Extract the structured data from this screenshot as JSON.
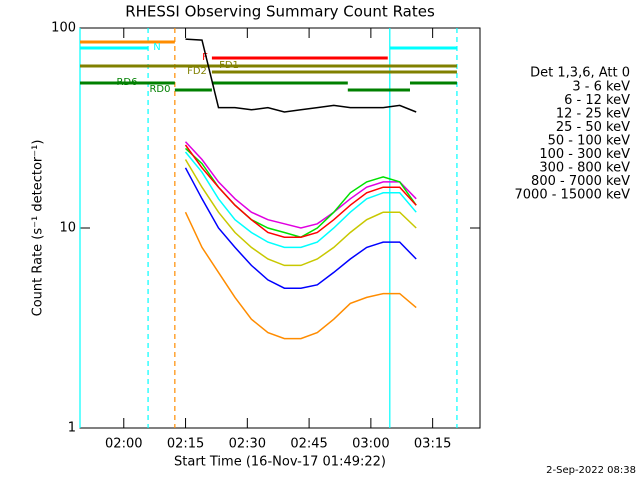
{
  "chart_data": {
    "type": "line",
    "title": "RHESSI Observing Summary Count Rates",
    "x_label": "Start Time (16-Nov-17 01:49:22)",
    "y_label": "Count Rate (s⁻¹ detector⁻¹)",
    "legend_title": "Det 1,3,6, Att 0",
    "footer": "2-Sep-2022 08:38",
    "log_y": true,
    "ylim": [
      1,
      100
    ],
    "yticks": [
      1,
      10,
      100
    ],
    "xlim": [
      109.37,
      206.5
    ],
    "xticks": [
      {
        "value": 120,
        "label": "02:00"
      },
      {
        "value": 135,
        "label": "02:15"
      },
      {
        "value": 150,
        "label": "02:30"
      },
      {
        "value": 165,
        "label": "02:45"
      },
      {
        "value": 180,
        "label": "03:00"
      },
      {
        "value": 195,
        "label": "03:15"
      }
    ],
    "x": [
      135,
      139,
      143,
      147,
      151,
      155,
      159,
      163,
      167,
      171,
      175,
      179,
      183,
      187,
      191
    ],
    "series": [
      {
        "name": "3 - 6 keV",
        "color": "#000000",
        "values": [
          88,
          87,
          40,
          40,
          39,
          40,
          38,
          39,
          40,
          41,
          40,
          40,
          40,
          41,
          38
        ]
      },
      {
        "name": "6 - 12 keV",
        "color": "#e000e0",
        "values": [
          27,
          22,
          17,
          14,
          12,
          11,
          10.5,
          10,
          10.5,
          12,
          14,
          16,
          17,
          17,
          14
        ]
      },
      {
        "name": "12 - 25 keV",
        "color": "#00e000",
        "values": [
          25,
          21,
          16,
          13,
          11,
          10,
          9.5,
          9,
          10,
          12,
          15,
          17,
          18,
          17,
          13
        ]
      },
      {
        "name": "25 - 50 keV",
        "color": "#00ffff",
        "values": [
          24,
          19,
          14,
          11,
          9.5,
          8.5,
          8,
          8,
          8.5,
          10,
          12,
          14,
          15,
          15,
          12
        ]
      },
      {
        "name": "50 - 100 keV",
        "color": "#c8c800",
        "values": [
          22,
          16,
          12,
          9.5,
          8,
          7,
          6.5,
          6.5,
          7,
          8,
          9.5,
          11,
          12,
          12,
          10
        ]
      },
      {
        "name": "100 - 300 keV",
        "color": "#ff0000",
        "values": [
          26,
          20,
          16,
          13,
          11,
          9.5,
          9,
          9,
          9.5,
          11,
          13,
          15,
          16,
          16,
          13
        ]
      },
      {
        "name": "300 - 800 keV",
        "color": "#0000ff",
        "values": [
          20,
          14,
          10,
          8,
          6.5,
          5.5,
          5,
          5,
          5.2,
          6,
          7,
          8,
          8.5,
          8.5,
          7
        ]
      },
      {
        "name": "800 - 7000 keV",
        "color": "#ff8c00",
        "values": [
          12,
          8,
          6,
          4.5,
          3.5,
          3,
          2.8,
          2.8,
          3,
          3.5,
          4.2,
          4.5,
          4.7,
          4.7,
          4
        ]
      },
      {
        "name": "7000 - 15000 keV",
        "color": "#a07800",
        "values": [
          null,
          null,
          null,
          null,
          null,
          null,
          null,
          null,
          null,
          null,
          null,
          null,
          null,
          null,
          null
        ]
      }
    ],
    "flags": [
      {
        "color": "#ff8c00",
        "segments": [
          [
            109.37,
            132.4
          ]
        ]
      },
      {
        "label": "N",
        "color": "#00ffff",
        "segments": [
          [
            109.37,
            125.9
          ],
          [
            184.6,
            200.9
          ]
        ]
      },
      {
        "label": "F",
        "color": "#ff0000",
        "segments": [
          [
            141.4,
            184.1
          ]
        ]
      },
      {
        "label": "FD1",
        "color": "#808000",
        "segments": [
          [
            109.37,
            200.9
          ]
        ]
      },
      {
        "label": "FD2",
        "color": "#808000",
        "segments": [
          [
            141.4,
            200.9
          ]
        ]
      },
      {
        "label": "RD0",
        "color": "#008000",
        "segments": [
          [
            132.4,
            141.4
          ],
          [
            174.4,
            189.5
          ]
        ]
      },
      {
        "label": "RD6",
        "color": "#008000",
        "segments": [
          [
            109.37,
            132.4
          ],
          [
            141.4,
            174.4
          ],
          [
            189.5,
            200.9
          ]
        ]
      }
    ],
    "vlines": [
      {
        "value": 109.37,
        "color": "#00ffff",
        "dashed": false
      },
      {
        "value": 184.6,
        "color": "#00ffff",
        "dashed": false
      },
      {
        "value": 125.9,
        "color": "#00ffff",
        "dashed": true
      },
      {
        "value": 200.9,
        "color": "#00ffff",
        "dashed": true
      },
      {
        "value": 132.4,
        "color": "#ff8c00",
        "dashed": true
      }
    ]
  }
}
